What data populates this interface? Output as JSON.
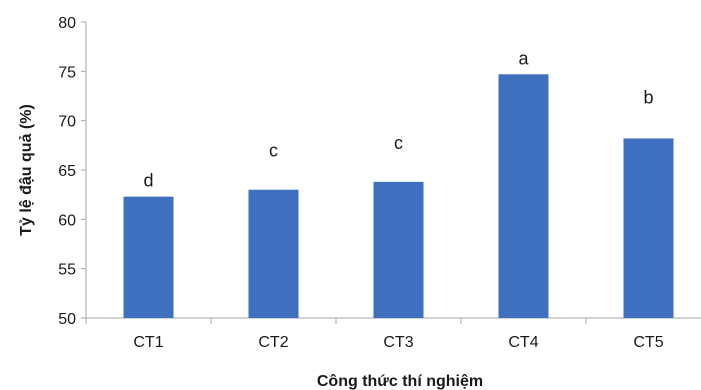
{
  "chart_data": {
    "type": "bar",
    "categories": [
      "CT1",
      "CT2",
      "CT3",
      "CT4",
      "CT5"
    ],
    "values": [
      62.3,
      63.0,
      63.8,
      74.7,
      68.2
    ],
    "significance_labels": [
      "d",
      "c",
      "c",
      "a",
      "b"
    ],
    "xlabel": "Công thức thí nghiệm",
    "ylabel": "Tỷ lệ đậu quả (%)",
    "ylim": [
      50,
      80
    ],
    "yticks": [
      50,
      55,
      60,
      65,
      70,
      75,
      80
    ],
    "grid": false,
    "legend": "none",
    "bar_color": "#3F6FBF",
    "axis_color": "#a6a6a6"
  }
}
